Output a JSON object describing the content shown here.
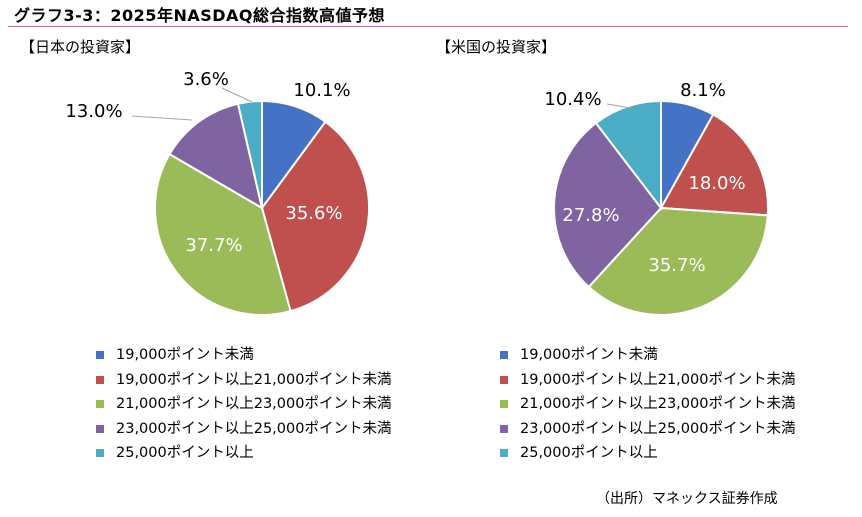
{
  "title": "グラフ3-3：2025年NASDAQ総合指数高値予想",
  "source": "（出所）マネックス証券作成",
  "chart_data": [
    {
      "type": "pie",
      "title": "【日本の投資家】",
      "categories": [
        "19,000ポイント未満",
        "19,000ポイント以上21,000ポイント未満",
        "21,000ポイント以上23,000ポイント未満",
        "23,000ポイント以上25,000ポイント未満",
        "25,000ポイント以上"
      ],
      "values": [
        10.1,
        35.6,
        37.7,
        13.0,
        3.6
      ],
      "labels": [
        "10.1%",
        "35.6%",
        "37.7%",
        "13.0%",
        "3.6%"
      ],
      "colors": [
        "#4472c4",
        "#c0504d",
        "#9bbb59",
        "#8064a2",
        "#4bacc6"
      ]
    },
    {
      "type": "pie",
      "title": "【米国の投資家】",
      "categories": [
        "19,000ポイント未満",
        "19,000ポイント以上21,000ポイント未満",
        "21,000ポイント以上23,000ポイント未満",
        "23,000ポイント以上25,000ポイント未満",
        "25,000ポイント以上"
      ],
      "values": [
        8.1,
        18.0,
        35.7,
        27.8,
        10.4
      ],
      "labels": [
        "8.1%",
        "18.0%",
        "35.7%",
        "27.8%",
        "10.4%"
      ],
      "colors": [
        "#4472c4",
        "#c0504d",
        "#9bbb59",
        "#8064a2",
        "#4bacc6"
      ]
    }
  ]
}
